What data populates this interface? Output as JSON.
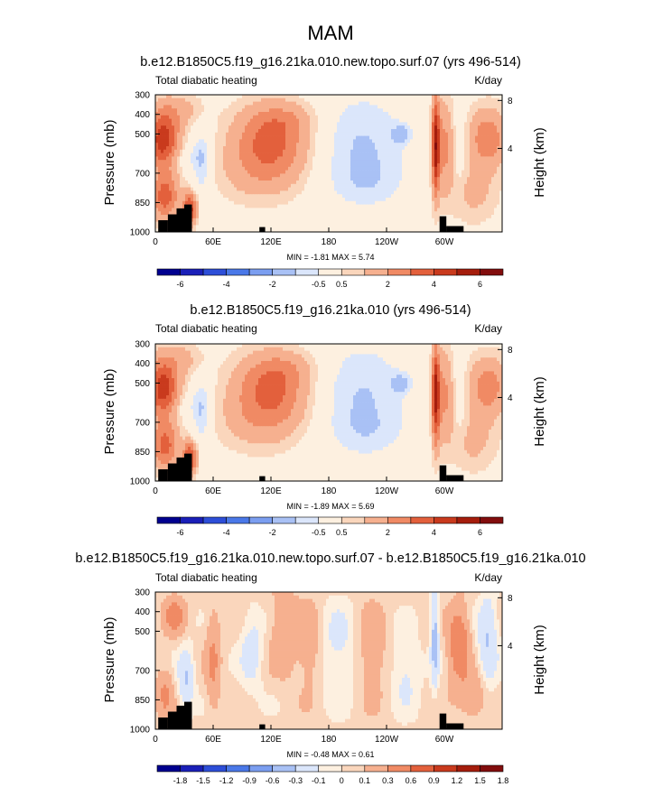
{
  "figure_title": "MAM",
  "colors": {
    "land": "#000000",
    "frame": "#000000",
    "palette_abs": [
      "#00008f",
      "#1a1fb8",
      "#2d4ed8",
      "#4a78e8",
      "#7b9ef0",
      "#a9c1f5",
      "#dbe6fb",
      "#fdf0e0",
      "#fad6bc",
      "#f6b08f",
      "#f08a64",
      "#e3603c",
      "#c93a1d",
      "#a51d0c",
      "#820d0d"
    ],
    "palette_diff": [
      "#00008f",
      "#1a1fb8",
      "#2d4ed8",
      "#4a78e8",
      "#7b9ef0",
      "#a9c1f5",
      "#dbe6fb",
      "#fdf0e0",
      "#fad6bc",
      "#f6b08f",
      "#f08a64",
      "#e3603c",
      "#c93a1d",
      "#a51d0c",
      "#820d0d"
    ]
  },
  "chart_data": [
    {
      "type": "contour",
      "title": "b.e12.B1850C5.f19_g16.21ka.010.new.topo.surf.07 (yrs 496-514)",
      "left_label": "Total diabatic heating",
      "right_label": "K/day",
      "ylabel": "Pressure (mb)",
      "ylabel_right": "Height (km)",
      "y_ticks": [
        "300",
        "400",
        "500",
        "700",
        "850",
        "1000"
      ],
      "y_tick_values": [
        300,
        400,
        500,
        700,
        850,
        1000
      ],
      "ylim": [
        1000,
        300
      ],
      "y2_ticks": [
        "8",
        "4"
      ],
      "x_ticks": [
        "0",
        "60E",
        "120E",
        "180",
        "120W",
        "60W"
      ],
      "xlim": [
        0,
        360
      ],
      "stats": "MIN =  -1.81  MAX =   5.74",
      "min": -1.81,
      "max": 5.74,
      "colorbar_labels": [
        "-6",
        "-4",
        "-2",
        "-0.5",
        "0.5",
        "2",
        "4",
        "6"
      ],
      "colorbar_levels": [
        -7,
        -6,
        -5,
        -4,
        -3,
        -2,
        -1,
        -0.5,
        0.5,
        1,
        2,
        3,
        4,
        5,
        6,
        7
      ],
      "scale": 1,
      "diff": false
    },
    {
      "type": "contour",
      "title": "b.e12.B1850C5.f19_g16.21ka.010 (yrs 496-514)",
      "left_label": "Total diabatic heating",
      "right_label": "K/day",
      "ylabel": "Pressure (mb)",
      "ylabel_right": "Height (km)",
      "y_ticks": [
        "300",
        "400",
        "500",
        "700",
        "850",
        "1000"
      ],
      "y_tick_values": [
        300,
        400,
        500,
        700,
        850,
        1000
      ],
      "ylim": [
        1000,
        300
      ],
      "y2_ticks": [
        "8",
        "4"
      ],
      "x_ticks": [
        "0",
        "60E",
        "120E",
        "180",
        "120W",
        "60W"
      ],
      "xlim": [
        0,
        360
      ],
      "stats": "MIN =  -1.89  MAX =   5.69",
      "min": -1.89,
      "max": 5.69,
      "colorbar_labels": [
        "-6",
        "-4",
        "-2",
        "-0.5",
        "0.5",
        "2",
        "4",
        "6"
      ],
      "colorbar_levels": [
        -7,
        -6,
        -5,
        -4,
        -3,
        -2,
        -1,
        -0.5,
        0.5,
        1,
        2,
        3,
        4,
        5,
        6,
        7
      ],
      "scale": 1,
      "diff": false
    },
    {
      "type": "contour",
      "title": "b.e12.B1850C5.f19_g16.21ka.010.new.topo.surf.07 - b.e12.B1850C5.f19_g16.21ka.010",
      "left_label": "Total diabatic heating",
      "right_label": "K/day",
      "ylabel": "Pressure (mb)",
      "ylabel_right": "Height (km)",
      "y_ticks": [
        "300",
        "400",
        "500",
        "700",
        "850",
        "1000"
      ],
      "y_tick_values": [
        300,
        400,
        500,
        700,
        850,
        1000
      ],
      "ylim": [
        1000,
        300
      ],
      "y2_ticks": [
        "8",
        "4"
      ],
      "x_ticks": [
        "0",
        "60E",
        "120E",
        "180",
        "120W",
        "60W"
      ],
      "xlim": [
        0,
        360
      ],
      "stats": "MIN =  -0.48  MAX =   0.61",
      "min": -0.48,
      "max": 0.61,
      "colorbar_labels": [
        "-1.8",
        "-1.5",
        "-1.2",
        "-0.9",
        "-0.6",
        "-0.3",
        "-0.1",
        "0",
        "0.1",
        "0.3",
        "0.6",
        "0.9",
        "1.2",
        "1.5",
        "1.8"
      ],
      "colorbar_levels": [
        -2.1,
        -1.8,
        -1.5,
        -1.2,
        -0.9,
        -0.6,
        -0.3,
        -0.1,
        0,
        0.1,
        0.3,
        0.6,
        0.9,
        1.2,
        1.5,
        1.8,
        2.1
      ],
      "scale": 0.1,
      "diff": true
    }
  ]
}
